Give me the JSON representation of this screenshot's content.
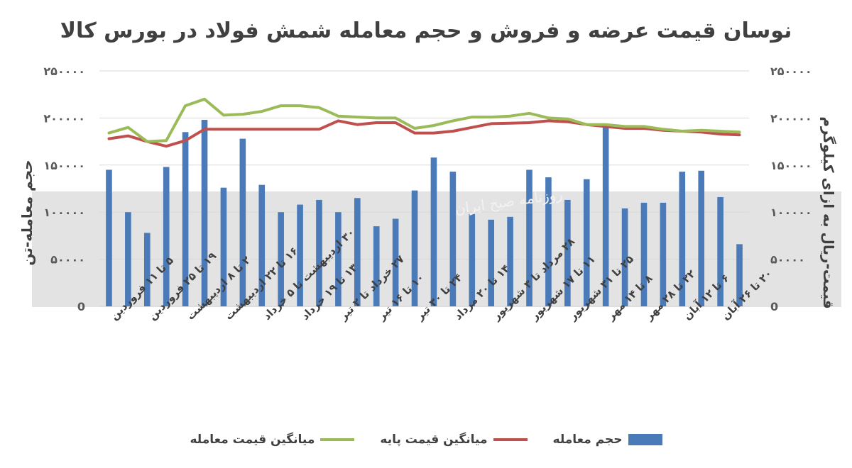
{
  "chart_data": {
    "type": "bar+line",
    "title": "نوسان قیمت عرضه و فروش و حجم معامله شمش فولاد در بورس کالا",
    "y_left_label": "حجم معامله-تن",
    "y_right_label": "قیمت-ریال به ازای کیلوگرم",
    "y_left_range": [
      0,
      250000
    ],
    "y_right_range": [
      0,
      250000
    ],
    "y_ticks": [
      0,
      50000,
      100000,
      150000,
      200000,
      250000
    ],
    "y_tick_labels": [
      "0",
      "۵۰۰۰۰",
      "۱۰۰۰۰۰",
      "۱۵۰۰۰۰",
      "۲۰۰۰۰۰",
      "۲۵۰۰۰۰"
    ],
    "grid": true,
    "x_tick_labels": [
      "۵ تا ۱۱ فروردین",
      "۱۹ تا ۲۵ فروردین",
      "۲ تا ۸ اردیبهشت",
      "۱۶ تا ۲۲ اردیبهشت",
      "۳۰ اردیبهشت تا ۵ خرداد",
      "۱۳ تا ۱۹ خرداد",
      "۲۷ خرداد تا ۲ تیر",
      "۱۰ تا ۱۶ تیر",
      "۲۴ تا ۳۰ تیر",
      "۱۴ تا ۲۰ مرداد",
      "۲۸ مرداد تا ۳ شهریور",
      "۱۱ تا ۱۷ شهریور",
      "۲۵ تا ۳۱ شهریور",
      "۸ تا ۱۴ مهر",
      "۲۲ تا ۲۸ مهر",
      "۶ تا ۱۲ آبان",
      "۲۰ تا ۲۶ آبان"
    ],
    "n_points": 34,
    "series": [
      {
        "name": "حجم معامله",
        "kind": "bar",
        "color": "#4a7ab8",
        "values": [
          145000,
          100000,
          78000,
          148000,
          185000,
          198000,
          126000,
          178000,
          129000,
          100000,
          108000,
          113000,
          100000,
          115000,
          85000,
          93000,
          123000,
          158000,
          143000,
          98000,
          92000,
          95000,
          145000,
          137000,
          113000,
          135000,
          193000,
          104000,
          110000,
          110000,
          143000,
          144000,
          116000,
          66000
        ]
      },
      {
        "name": "میانگین قیمت پایه",
        "kind": "line",
        "color": "#c0504d",
        "values": [
          178000,
          181000,
          175000,
          170000,
          176000,
          188000,
          188000,
          188000,
          188000,
          188000,
          188000,
          188000,
          197000,
          193000,
          195000,
          195000,
          184000,
          184000,
          186000,
          190000,
          194000,
          194500,
          195000,
          197000,
          196000,
          193000,
          191000,
          189000,
          189000,
          187000,
          186000,
          185000,
          183000,
          182000
        ]
      },
      {
        "name": "میانگین قیمت معامله",
        "kind": "line",
        "color": "#9bbb59",
        "values": [
          184000,
          190000,
          175000,
          176000,
          213000,
          220000,
          203000,
          204000,
          207000,
          213000,
          213000,
          211000,
          202000,
          201000,
          200000,
          200000,
          189000,
          192000,
          197000,
          201000,
          201000,
          202000,
          205000,
          200000,
          199000,
          193000,
          193000,
          191000,
          191000,
          188000,
          186000,
          187000,
          186000,
          185000
        ]
      }
    ],
    "legend_position": "bottom"
  },
  "watermark": "روزنامه صبح ایران"
}
